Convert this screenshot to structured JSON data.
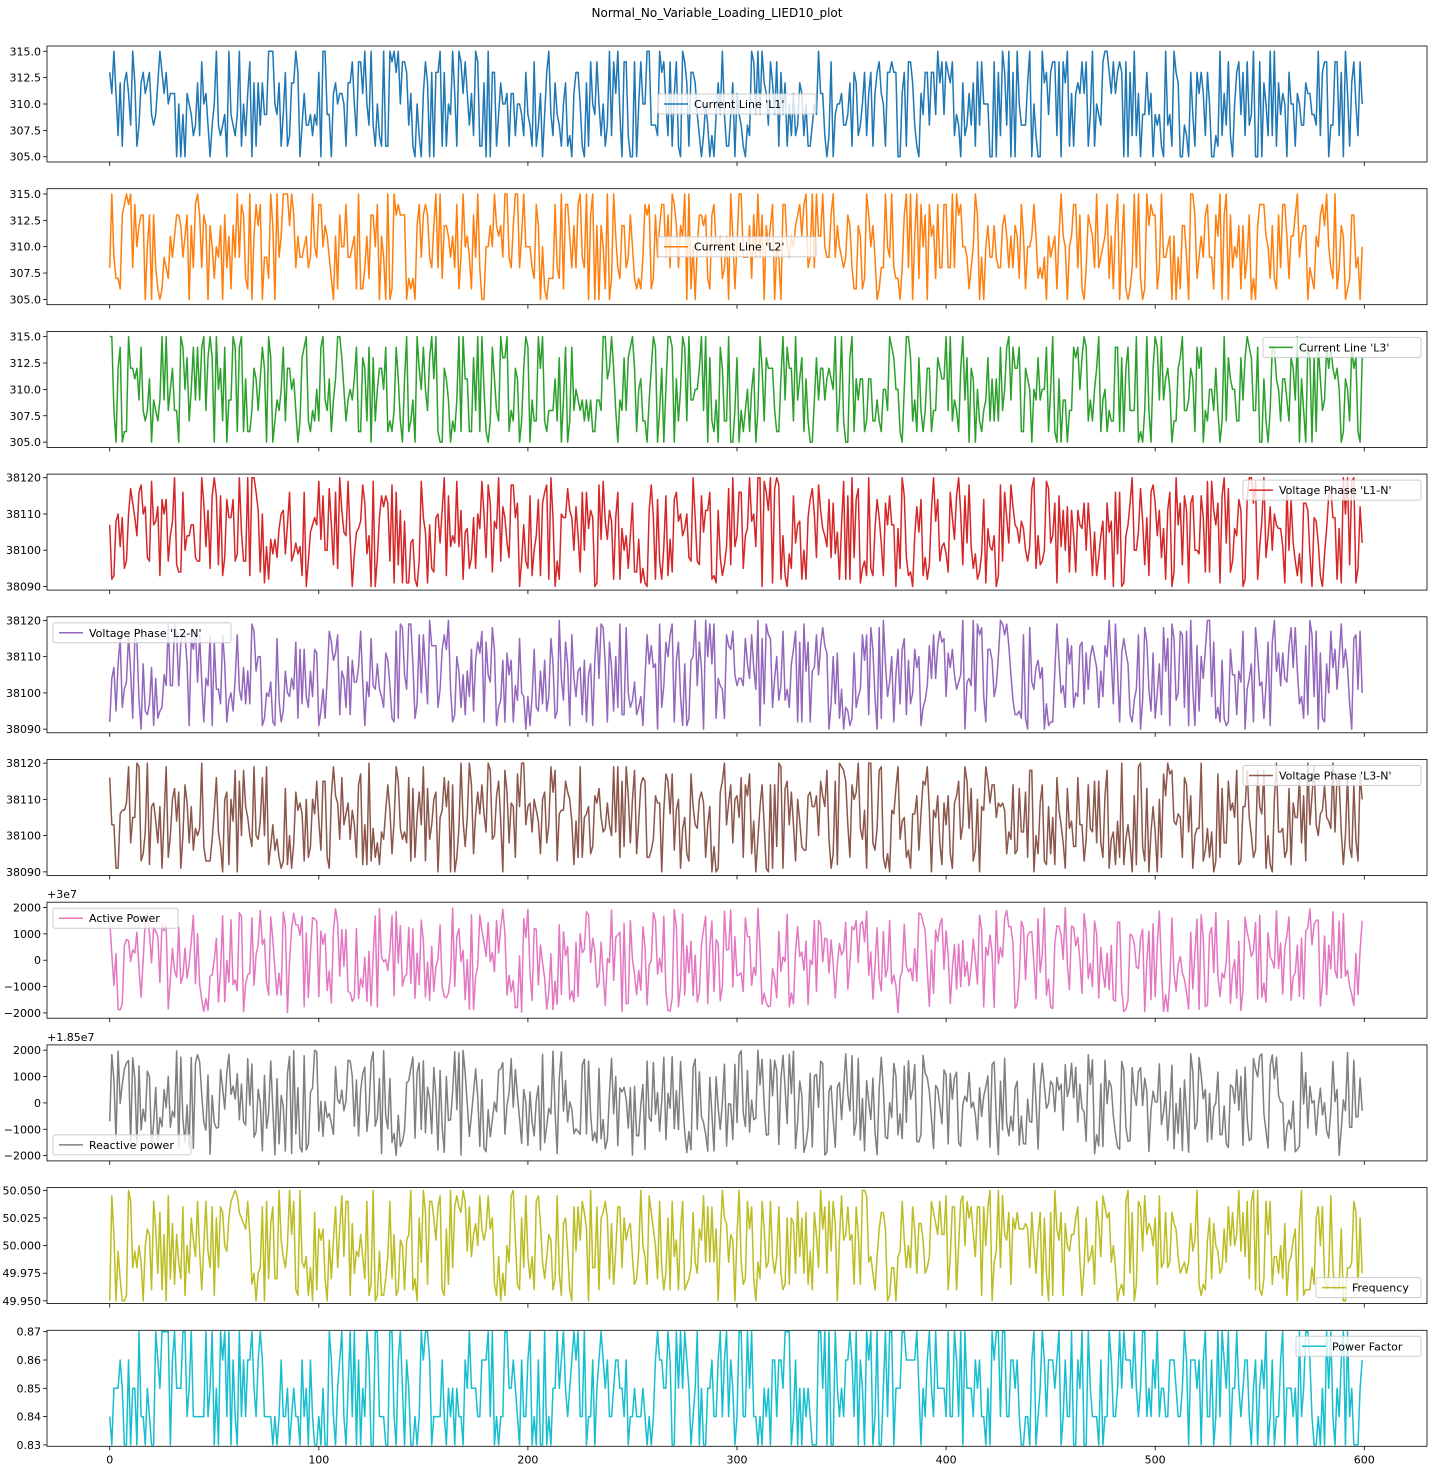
{
  "chart_data": {
    "type": "line",
    "title": "Normal_No_Variable_Loading_LIED10_plot",
    "x": {
      "min": 0,
      "max": 599,
      "lim": [
        -30,
        630
      ],
      "ticks": [
        0,
        100,
        200,
        300,
        400,
        500,
        600
      ],
      "tick_labels": [
        "0",
        "100",
        "200",
        "300",
        "400",
        "500",
        "600"
      ],
      "shared": true
    },
    "grid": false,
    "panels": [
      {
        "series": "Current Line 'L1'",
        "color": "#1f77b4",
        "ylim": [
          304.5,
          315.5
        ],
        "yticks": [
          305.0,
          307.5,
          310.0,
          312.5,
          315.0
        ],
        "ytick_labels": [
          "305.0",
          "307.5",
          "310.0",
          "312.5",
          "315.0"
        ],
        "offset_label": "",
        "legend_position": "center",
        "value_range": [
          305,
          315
        ],
        "first": 313,
        "last": 310,
        "step": 1,
        "seed": 11
      },
      {
        "series": "Current Line 'L2'",
        "color": "#ff7f0e",
        "ylim": [
          304.5,
          315.5
        ],
        "yticks": [
          305.0,
          307.5,
          310.0,
          312.5,
          315.0
        ],
        "ytick_labels": [
          "305.0",
          "307.5",
          "310.0",
          "312.5",
          "315.0"
        ],
        "offset_label": "",
        "legend_position": "center",
        "value_range": [
          305,
          315
        ],
        "first": 308,
        "last": 310,
        "step": 1,
        "seed": 23
      },
      {
        "series": "Current Line 'L3'",
        "color": "#2ca02c",
        "ylim": [
          304.5,
          315.5
        ],
        "yticks": [
          305.0,
          307.5,
          310.0,
          312.5,
          315.0
        ],
        "ytick_labels": [
          "305.0",
          "307.5",
          "310.0",
          "312.5",
          "315.0"
        ],
        "offset_label": "",
        "legend_position": "upper right",
        "value_range": [
          305,
          315
        ],
        "first": 315,
        "last": 313,
        "step": 1,
        "seed": 37
      },
      {
        "series": "Voltage Phase 'L1-N'",
        "color": "#d62728",
        "ylim": [
          38089,
          38121
        ],
        "yticks": [
          38090,
          38100,
          38110,
          38120
        ],
        "ytick_labels": [
          "38090",
          "38100",
          "38110",
          "38120"
        ],
        "offset_label": "",
        "legend_position": "upper right",
        "value_range": [
          38090,
          38120
        ],
        "first": 38107,
        "last": 38102,
        "step": 1,
        "seed": 41
      },
      {
        "series": "Voltage Phase 'L2-N'",
        "color": "#9467bd",
        "ylim": [
          38089,
          38121
        ],
        "yticks": [
          38090,
          38100,
          38110,
          38120
        ],
        "ytick_labels": [
          "38090",
          "38100",
          "38110",
          "38120"
        ],
        "offset_label": "",
        "legend_position": "upper left",
        "value_range": [
          38090,
          38120
        ],
        "first": 38092,
        "last": 38100,
        "step": 1,
        "seed": 53
      },
      {
        "series": "Voltage Phase 'L3-N'",
        "color": "#8c564b",
        "ylim": [
          38089,
          38121
        ],
        "yticks": [
          38090,
          38100,
          38110,
          38120
        ],
        "ytick_labels": [
          "38090",
          "38100",
          "38110",
          "38120"
        ],
        "offset_label": "",
        "legend_position": "upper right",
        "value_range": [
          38090,
          38120
        ],
        "first": 38116,
        "last": 38110,
        "step": 1,
        "seed": 67
      },
      {
        "series": "Active Power",
        "color": "#e377c2",
        "ylim": [
          -2200,
          2200
        ],
        "yticks": [
          -2000,
          -1000,
          0,
          1000,
          2000
        ],
        "ytick_labels": [
          "−2000",
          "−1000",
          "0",
          "1000",
          "2000"
        ],
        "offset_label": "+3e7",
        "legend_position": "upper left",
        "value_range": [
          -2000,
          2000
        ],
        "first": 1500,
        "last": 1500,
        "step": 1,
        "seed": 71
      },
      {
        "series": "Reactive power",
        "color": "#7f7f7f",
        "ylim": [
          -2200,
          2200
        ],
        "yticks": [
          -2000,
          -1000,
          0,
          1000,
          2000
        ],
        "ytick_labels": [
          "−2000",
          "−1000",
          "0",
          "1000",
          "2000"
        ],
        "offset_label": "+1.85e7",
        "legend_position": "lower left",
        "value_range": [
          -2000,
          2000
        ],
        "first": -700,
        "last": -300,
        "step": 1,
        "seed": 83
      },
      {
        "series": "Frequency",
        "color": "#bcbd22",
        "ylim": [
          49.9475,
          50.0525
        ],
        "yticks": [
          49.95,
          49.975,
          50.0,
          50.025,
          50.05
        ],
        "ytick_labels": [
          "49.950",
          "49.975",
          "50.000",
          "50.025",
          "50.050"
        ],
        "offset_label": "",
        "legend_position": "lower right",
        "value_range": [
          49.95,
          50.05
        ],
        "first": 49.95,
        "last": 49.975,
        "step": 0.005,
        "seed": 97
      },
      {
        "series": "Power Factor",
        "color": "#17becf",
        "ylim": [
          0.8295,
          0.8705
        ],
        "yticks": [
          0.83,
          0.84,
          0.85,
          0.86,
          0.87
        ],
        "ytick_labels": [
          "0.83",
          "0.84",
          "0.85",
          "0.86",
          "0.87"
        ],
        "offset_label": "",
        "legend_position": "upper right",
        "value_range": [
          0.83,
          0.87
        ],
        "first": 0.84,
        "last": 0.86,
        "step": 0.01,
        "seed": 101
      }
    ]
  }
}
